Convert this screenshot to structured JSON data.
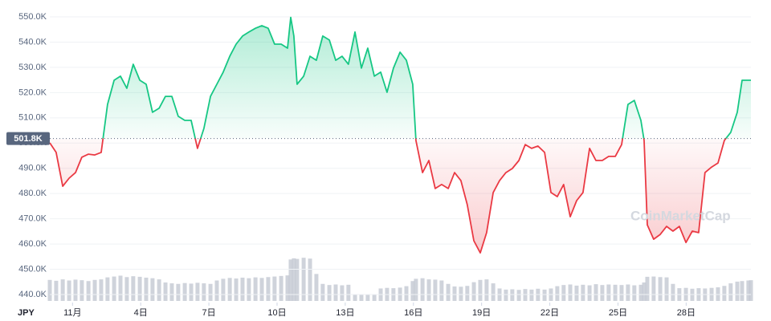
{
  "chart_data": {
    "type": "line",
    "unit_label": "JPY",
    "watermark": "CoinMarketCap",
    "baseline": 501.8,
    "baseline_label": "501.8K",
    "up_color": "#16c784",
    "down_color": "#ea3943",
    "volume_color": "#c3c8d2",
    "grid": true,
    "xlim": [
      0,
      30.85
    ],
    "xticks": [
      {
        "value": 1,
        "label": "11月"
      },
      {
        "value": 4,
        "label": "4日"
      },
      {
        "value": 7,
        "label": "7日"
      },
      {
        "value": 10,
        "label": "10日"
      },
      {
        "value": 13,
        "label": "13日"
      },
      {
        "value": 16,
        "label": "16日"
      },
      {
        "value": 19,
        "label": "19日"
      },
      {
        "value": 22,
        "label": "22日"
      },
      {
        "value": 25,
        "label": "25日"
      },
      {
        "value": 28,
        "label": "28日"
      }
    ],
    "ylim": [
      440,
      550
    ],
    "yticks": [
      {
        "value": 440,
        "label": "440.0K"
      },
      {
        "value": 450,
        "label": "450.0K"
      },
      {
        "value": 460,
        "label": "460.0K"
      },
      {
        "value": 470,
        "label": "470.0K"
      },
      {
        "value": 480,
        "label": "480.0K"
      },
      {
        "value": 490,
        "label": "490.0K"
      },
      {
        "value": 500,
        "label": "500.0K"
      },
      {
        "value": 510,
        "label": "510.0K"
      },
      {
        "value": 520,
        "label": "520.0K"
      },
      {
        "value": 530,
        "label": "530.0K"
      },
      {
        "value": 540,
        "label": "540.0K"
      },
      {
        "value": 550,
        "label": "550.0K"
      }
    ],
    "y2lim": [
      0,
      100
    ],
    "x": [
      0,
      0.28,
      0.57,
      0.85,
      1.13,
      1.41,
      1.7,
      1.98,
      2.26,
      2.54,
      2.83,
      3.11,
      3.39,
      3.67,
      3.96,
      4.24,
      4.52,
      4.81,
      5.09,
      5.37,
      5.65,
      5.94,
      6.22,
      6.5,
      6.78,
      7.07,
      7.35,
      7.63,
      7.92,
      8.2,
      8.48,
      8.76,
      9.05,
      9.33,
      9.61,
      9.89,
      10.18,
      10.46,
      10.6,
      10.74,
      10.88,
      11.17,
      11.45,
      11.73,
      12.01,
      12.3,
      12.58,
      12.86,
      13.14,
      13.43,
      13.71,
      13.99,
      14.28,
      14.56,
      14.84,
      15.12,
      15.41,
      15.69,
      15.97,
      16.11,
      16.4,
      16.68,
      16.96,
      17.24,
      17.53,
      17.81,
      18.09,
      18.37,
      18.66,
      18.94,
      19.22,
      19.51,
      19.79,
      20.07,
      20.35,
      20.64,
      20.92,
      21.2,
      21.48,
      21.77,
      22.05,
      22.33,
      22.61,
      22.9,
      23.18,
      23.46,
      23.75,
      24.03,
      24.31,
      24.59,
      24.88,
      25.16,
      25.44,
      25.72,
      26.01,
      26.15,
      26.29,
      26.57,
      26.86,
      27.14,
      27.42,
      27.7,
      27.99,
      28.27,
      28.55,
      28.83,
      29.12,
      29.4,
      29.68,
      29.96,
      30.25,
      30.46,
      30.74,
      30.85
    ],
    "values": [
      500.1,
      496.3,
      482.9,
      486.1,
      488.3,
      494.4,
      495.6,
      495.3,
      496.3,
      515.3,
      524.9,
      526.5,
      521.7,
      531.2,
      524.9,
      523.3,
      512.2,
      513.8,
      518.5,
      518.5,
      510.6,
      509.0,
      509.0,
      497.9,
      505.8,
      518.5,
      523.3,
      528.1,
      534.4,
      539.2,
      542.4,
      544.0,
      545.5,
      546.5,
      545.5,
      539.2,
      539.2,
      537.6,
      549.8,
      542.4,
      523.3,
      526.5,
      534.4,
      532.8,
      542.4,
      540.8,
      532.8,
      534.4,
      531.2,
      544.0,
      529.7,
      537.6,
      526.5,
      528.1,
      520.1,
      529.7,
      536.0,
      532.8,
      523.3,
      501.0,
      488.3,
      493.1,
      482.0,
      483.6,
      482.0,
      488.3,
      485.1,
      475.6,
      461.3,
      456.5,
      464.5,
      480.4,
      485.1,
      488.3,
      489.9,
      493.1,
      499.4,
      497.9,
      498.8,
      496.3,
      480.4,
      478.8,
      483.6,
      470.8,
      477.2,
      480.4,
      497.9,
      493.1,
      493.1,
      494.7,
      494.7,
      499.4,
      515.3,
      516.9,
      509.0,
      501.0,
      467.6,
      461.9,
      463.8,
      467.0,
      465.1,
      467.0,
      460.6,
      465.1,
      464.5,
      488.3,
      490.5,
      492.1,
      501.0,
      504.2,
      512.2,
      524.9,
      524.9,
      524.9
    ],
    "volume": [
      7.4,
      7.1,
      7.6,
      7.2,
      7.5,
      7.3,
      7.0,
      7.4,
      7.6,
      8.3,
      8.6,
      8.9,
      8.4,
      8.7,
      8.5,
      8.2,
      8.0,
      7.6,
      6.5,
      6.2,
      6.0,
      6.3,
      6.1,
      6.4,
      6.2,
      6.0,
      7.2,
      7.8,
      8.1,
      7.9,
      8.2,
      8.0,
      8.3,
      8.1,
      8.4,
      8.6,
      8.8,
      9.0,
      14.6,
      15.0,
      14.8,
      15.2,
      14.9,
      9.5,
      6.0,
      5.6,
      5.8,
      5.5,
      5.7,
      2.3,
      2.4,
      2.2,
      2.3,
      4.4,
      4.6,
      4.5,
      4.7,
      5.2,
      7.0,
      7.8,
      8.0,
      7.6,
      7.5,
      7.2,
      6.0,
      5.1,
      5.0,
      5.3,
      6.6,
      7.4,
      7.6,
      6.2,
      4.4,
      4.0,
      4.1,
      3.9,
      4.2,
      4.0,
      4.3,
      4.0,
      4.4,
      5.2,
      5.6,
      5.8,
      5.4,
      5.7,
      5.5,
      5.9,
      5.6,
      5.8,
      5.7,
      5.6,
      5.8,
      5.5,
      5.7,
      6.5,
      8.5,
      8.6,
      8.4,
      8.3,
      6.0,
      4.5,
      4.6,
      4.3,
      4.5,
      4.4,
      4.6,
      4.8,
      5.3,
      6.2,
      6.8,
      7.0,
      7.2,
      7.3
    ]
  }
}
